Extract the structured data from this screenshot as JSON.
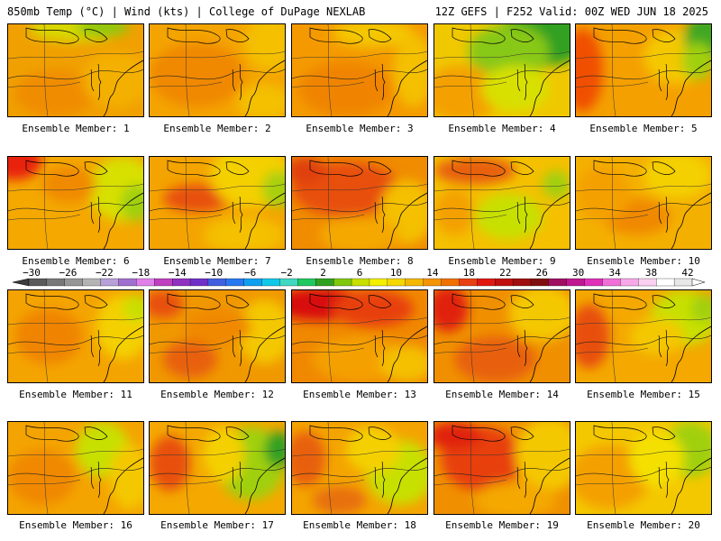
{
  "header": {
    "left": "850mb Temp (°C) | Wind (kts) | College of DuPage NEXLAB",
    "right": "12Z GEFS | F252 Valid: 00Z WED JUN 18 2025"
  },
  "caption_prefix": "Ensemble Member:",
  "members": [
    {
      "label": "Ensemble Member: 1",
      "base": "#f0a000",
      "blobs": [
        [
          "#d8d800",
          0.5,
          0.05,
          0.35,
          0.14
        ],
        [
          "#8cc810",
          0.7,
          0.03,
          0.2,
          0.1
        ],
        [
          "#f08c00",
          0.35,
          0.75,
          0.3,
          0.25
        ],
        [
          "#f4b000",
          0.8,
          0.6,
          0.25,
          0.3
        ]
      ]
    },
    {
      "label": "Ensemble Member: 2",
      "base": "#f4a400",
      "blobs": [
        [
          "#f08800",
          0.35,
          0.55,
          0.35,
          0.35
        ],
        [
          "#f4c000",
          0.9,
          0.2,
          0.2,
          0.3
        ],
        [
          "#f4c000",
          0.85,
          0.85,
          0.2,
          0.2
        ]
      ]
    },
    {
      "label": "Ensemble Member: 3",
      "base": "#f49a00",
      "blobs": [
        [
          "#f4c800",
          0.6,
          0.1,
          0.3,
          0.15
        ],
        [
          "#f08400",
          0.4,
          0.7,
          0.35,
          0.3
        ],
        [
          "#f4c000",
          0.9,
          0.5,
          0.15,
          0.4
        ]
      ]
    },
    {
      "label": "Ensemble Member: 4",
      "base": "#f0c800",
      "blobs": [
        [
          "#30a020",
          0.8,
          0.15,
          0.35,
          0.3
        ],
        [
          "#88c818",
          0.55,
          0.3,
          0.3,
          0.3
        ],
        [
          "#f4a000",
          0.2,
          0.75,
          0.3,
          0.3
        ],
        [
          "#d8e000",
          0.6,
          0.7,
          0.25,
          0.25
        ]
      ]
    },
    {
      "label": "Ensemble Member: 5",
      "base": "#f4a000",
      "blobs": [
        [
          "#f05000",
          0.05,
          0.5,
          0.15,
          0.45
        ],
        [
          "#f4c800",
          0.75,
          0.35,
          0.25,
          0.3
        ],
        [
          "#40a820",
          0.95,
          0.15,
          0.15,
          0.25
        ],
        [
          "#a0d010",
          0.9,
          0.4,
          0.12,
          0.2
        ]
      ]
    },
    {
      "label": "Ensemble Member: 6",
      "base": "#f4a800",
      "blobs": [
        [
          "#e82010",
          0.05,
          0.05,
          0.2,
          0.2
        ],
        [
          "#d8e000",
          0.85,
          0.35,
          0.25,
          0.35
        ],
        [
          "#a0d010",
          0.95,
          0.5,
          0.12,
          0.2
        ],
        [
          "#f08a00",
          0.45,
          0.3,
          0.2,
          0.2
        ]
      ]
    },
    {
      "label": "Ensemble Member: 7",
      "base": "#f4a400",
      "blobs": [
        [
          "#e85010",
          0.35,
          0.45,
          0.25,
          0.15
        ],
        [
          "#f4d000",
          0.75,
          0.2,
          0.3,
          0.35
        ],
        [
          "#a8d010",
          0.95,
          0.35,
          0.12,
          0.2
        ],
        [
          "#f4c000",
          0.7,
          0.85,
          0.3,
          0.2
        ]
      ]
    },
    {
      "label": "Ensemble Member: 8",
      "base": "#f08c00",
      "blobs": [
        [
          "#e85010",
          0.4,
          0.35,
          0.4,
          0.3
        ],
        [
          "#f4c000",
          0.85,
          0.6,
          0.2,
          0.35
        ],
        [
          "#e04010",
          0.1,
          0.15,
          0.15,
          0.15
        ],
        [
          "#f4a800",
          0.5,
          0.85,
          0.3,
          0.2
        ]
      ]
    },
    {
      "label": "Ensemble Member: 9",
      "base": "#f4c000",
      "blobs": [
        [
          "#e86010",
          0.3,
          0.15,
          0.3,
          0.15
        ],
        [
          "#c8e000",
          0.55,
          0.65,
          0.25,
          0.25
        ],
        [
          "#a0d010",
          0.9,
          0.3,
          0.1,
          0.15
        ],
        [
          "#f4a000",
          0.15,
          0.6,
          0.15,
          0.25
        ]
      ]
    },
    {
      "label": "Ensemble Member: 10",
      "base": "#f4b000",
      "blobs": [
        [
          "#f4d000",
          0.75,
          0.2,
          0.25,
          0.25
        ],
        [
          "#f08800",
          0.45,
          0.65,
          0.25,
          0.2
        ],
        [
          "#f4a000",
          0.2,
          0.4,
          0.2,
          0.3
        ]
      ]
    },
    {
      "label": "Ensemble Member: 11",
      "base": "#f4a400",
      "blobs": [
        [
          "#f08400",
          0.3,
          0.5,
          0.25,
          0.3
        ],
        [
          "#f4d000",
          0.85,
          0.4,
          0.2,
          0.35
        ],
        [
          "#c8e000",
          0.95,
          0.2,
          0.1,
          0.15
        ]
      ]
    },
    {
      "label": "Ensemble Member: 12",
      "base": "#f09800",
      "blobs": [
        [
          "#e85010",
          0.1,
          0.15,
          0.15,
          0.15
        ],
        [
          "#e86010",
          0.3,
          0.75,
          0.2,
          0.2
        ],
        [
          "#f4c800",
          0.85,
          0.45,
          0.2,
          0.35
        ],
        [
          "#f08800",
          0.5,
          0.4,
          0.25,
          0.2
        ]
      ]
    },
    {
      "label": "Ensemble Member: 13",
      "base": "#f08800",
      "blobs": [
        [
          "#d81010",
          0.2,
          0.15,
          0.35,
          0.18
        ],
        [
          "#e84010",
          0.6,
          0.2,
          0.3,
          0.2
        ],
        [
          "#f4a000",
          0.5,
          0.75,
          0.35,
          0.25
        ],
        [
          "#f4c000",
          0.85,
          0.8,
          0.2,
          0.2
        ]
      ]
    },
    {
      "label": "Ensemble Member: 14",
      "base": "#f09000",
      "blobs": [
        [
          "#e02010",
          0.1,
          0.2,
          0.15,
          0.25
        ],
        [
          "#f4c800",
          0.8,
          0.25,
          0.25,
          0.3
        ],
        [
          "#e86010",
          0.45,
          0.75,
          0.3,
          0.25
        ]
      ]
    },
    {
      "label": "Ensemble Member: 15",
      "base": "#f4a800",
      "blobs": [
        [
          "#e85010",
          0.1,
          0.5,
          0.15,
          0.35
        ],
        [
          "#c8e000",
          0.8,
          0.3,
          0.25,
          0.3
        ],
        [
          "#a0d010",
          0.95,
          0.2,
          0.1,
          0.15
        ],
        [
          "#f4c800",
          0.6,
          0.5,
          0.2,
          0.2
        ]
      ]
    },
    {
      "label": "Ensemble Member: 16",
      "base": "#f4a400",
      "blobs": [
        [
          "#c8e000",
          0.7,
          0.3,
          0.2,
          0.3
        ],
        [
          "#f4c800",
          0.9,
          0.6,
          0.15,
          0.35
        ],
        [
          "#f08800",
          0.25,
          0.6,
          0.25,
          0.3
        ]
      ]
    },
    {
      "label": "Ensemble Member: 17",
      "base": "#f4a800",
      "blobs": [
        [
          "#e85010",
          0.15,
          0.45,
          0.15,
          0.3
        ],
        [
          "#a0d010",
          0.75,
          0.45,
          0.25,
          0.4
        ],
        [
          "#30a020",
          0.95,
          0.3,
          0.1,
          0.2
        ],
        [
          "#f4d000",
          0.55,
          0.35,
          0.15,
          0.3
        ]
      ]
    },
    {
      "label": "Ensemble Member: 18",
      "base": "#f4a400",
      "blobs": [
        [
          "#e86010",
          0.1,
          0.4,
          0.15,
          0.3
        ],
        [
          "#c8e000",
          0.8,
          0.55,
          0.25,
          0.35
        ],
        [
          "#f4d000",
          0.6,
          0.3,
          0.2,
          0.25
        ],
        [
          "#e87010",
          0.35,
          0.85,
          0.2,
          0.15
        ]
      ]
    },
    {
      "label": "Ensemble Member: 19",
      "base": "#f09000",
      "blobs": [
        [
          "#e84010",
          0.35,
          0.4,
          0.3,
          0.35
        ],
        [
          "#e02010",
          0.15,
          0.15,
          0.2,
          0.15
        ],
        [
          "#f4c800",
          0.85,
          0.35,
          0.25,
          0.4
        ],
        [
          "#f4a800",
          0.6,
          0.85,
          0.3,
          0.2
        ]
      ]
    },
    {
      "label": "Ensemble Member: 20",
      "base": "#f4c800",
      "blobs": [
        [
          "#f4a000",
          0.25,
          0.6,
          0.3,
          0.35
        ],
        [
          "#a0d010",
          0.85,
          0.3,
          0.2,
          0.3
        ],
        [
          "#f4e000",
          0.6,
          0.4,
          0.2,
          0.3
        ]
      ]
    }
  ],
  "colorbar": {
    "labels": [
      "−30",
      "−26",
      "−22",
      "−18",
      "−14",
      "−10",
      "−6",
      "−2",
      "2",
      "6",
      "10",
      "14",
      "18",
      "22",
      "26",
      "30",
      "34",
      "38",
      "42"
    ],
    "colors": [
      "#5a5a5a",
      "#787878",
      "#969696",
      "#b4b4b4",
      "#b8a0d8",
      "#a070d0",
      "#e080e8",
      "#c040c0",
      "#9030c0",
      "#7030c8",
      "#4060e0",
      "#2878f0",
      "#10a0f0",
      "#10c8e8",
      "#40d8c0",
      "#20c860",
      "#30a020",
      "#80c810",
      "#c8e000",
      "#f4f000",
      "#f4d800",
      "#f4b800",
      "#f49400",
      "#f07000",
      "#e84010",
      "#e01810",
      "#c01010",
      "#a01010",
      "#801010",
      "#a01060",
      "#c01890",
      "#e030b8",
      "#f070d8",
      "#f8a8e8",
      "#fcd0f0",
      "#ffffff",
      "#e8e8e8"
    ]
  }
}
